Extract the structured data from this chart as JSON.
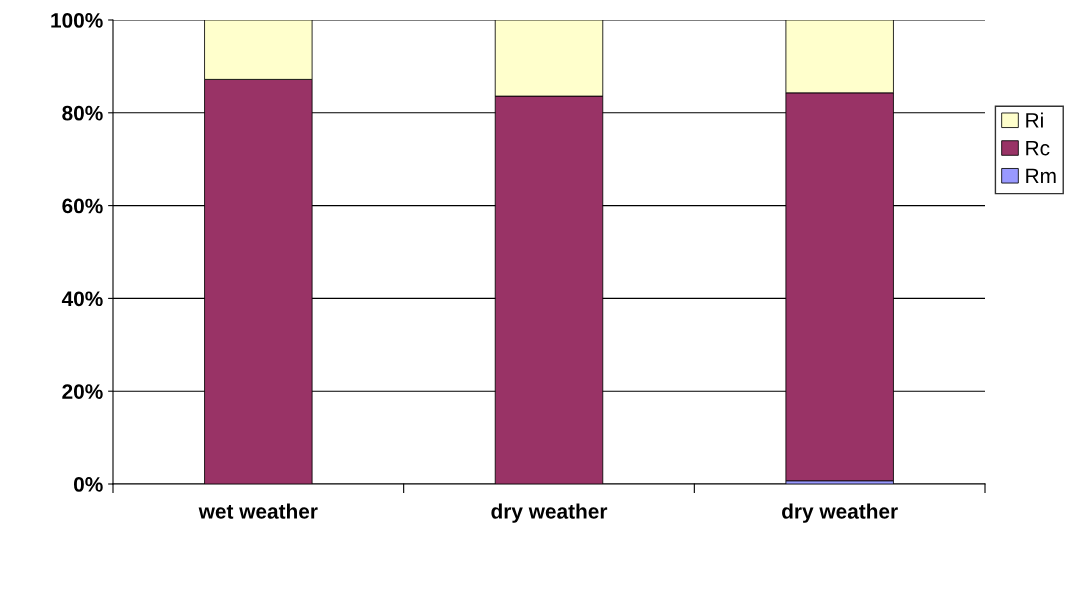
{
  "chart_data": {
    "type": "bar",
    "stacked": true,
    "categories": [
      "wet weather",
      "dry weather",
      "dry weather"
    ],
    "series": [
      {
        "name": "Rm",
        "color": "#9999ff",
        "values": [
          null,
          null,
          0.7
        ]
      },
      {
        "name": "Rc",
        "color": "#993366",
        "values": [
          87.2,
          83.6,
          83.6
        ]
      },
      {
        "name": "Ri",
        "color": "#ffffcc",
        "values": [
          12.8,
          16.4,
          15.7
        ]
      }
    ],
    "ylim": [
      0,
      100
    ],
    "yticks": [
      {
        "value": 0,
        "label": "0%"
      },
      {
        "value": 20,
        "label": "20%"
      },
      {
        "value": 40,
        "label": "40%"
      },
      {
        "value": 60,
        "label": "60%"
      },
      {
        "value": 80,
        "label": "80%"
      },
      {
        "value": 100,
        "label": "100%"
      }
    ],
    "grid": "y",
    "legend": "right"
  }
}
